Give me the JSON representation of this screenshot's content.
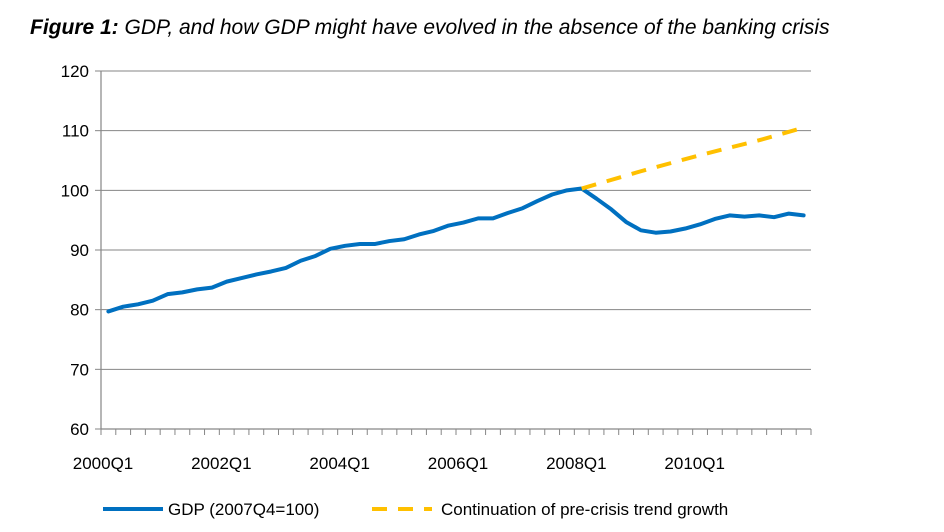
{
  "title": {
    "prefix": "Figure 1:",
    "text": "GDP, and how GDP might have evolved in the absence of the banking crisis"
  },
  "chart_data": {
    "type": "line",
    "x_start": "2000Q1",
    "x_labels": [
      "2000Q1",
      "2002Q1",
      "2004Q1",
      "2006Q1",
      "2008Q1",
      "2010Q1"
    ],
    "y_ticks": [
      60,
      70,
      80,
      90,
      100,
      110,
      120
    ],
    "ylim": [
      60,
      120
    ],
    "grid": true,
    "legend_position": "bottom",
    "series": [
      {
        "name": "GDP (2007Q4=100)",
        "color": "#0070C0",
        "style": "solid",
        "x": [
          "2000Q1",
          "2000Q2",
          "2000Q3",
          "2000Q4",
          "2001Q1",
          "2001Q2",
          "2001Q3",
          "2001Q4",
          "2002Q1",
          "2002Q2",
          "2002Q3",
          "2002Q4",
          "2003Q1",
          "2003Q2",
          "2003Q3",
          "2003Q4",
          "2004Q1",
          "2004Q2",
          "2004Q3",
          "2004Q4",
          "2005Q1",
          "2005Q2",
          "2005Q3",
          "2005Q4",
          "2006Q1",
          "2006Q2",
          "2006Q3",
          "2006Q4",
          "2007Q1",
          "2007Q2",
          "2007Q3",
          "2007Q4",
          "2008Q1",
          "2008Q2",
          "2008Q3",
          "2008Q4",
          "2009Q1",
          "2009Q2",
          "2009Q3",
          "2009Q4",
          "2010Q1",
          "2010Q2",
          "2010Q3",
          "2010Q4",
          "2011Q1",
          "2011Q2",
          "2011Q3",
          "2011Q4"
        ],
        "values": [
          79.7,
          80.5,
          80.9,
          81.5,
          82.6,
          82.9,
          83.4,
          83.7,
          84.7,
          85.3,
          85.9,
          86.4,
          87.0,
          88.2,
          89.0,
          90.2,
          90.7,
          91.0,
          91.0,
          91.5,
          91.8,
          92.6,
          93.2,
          94.1,
          94.6,
          95.3,
          95.3,
          96.2,
          97.0,
          98.2,
          99.3,
          100.0,
          100.3,
          98.6,
          96.8,
          94.7,
          93.3,
          92.9,
          93.1,
          93.6,
          94.3,
          95.2,
          95.8,
          95.6,
          95.8,
          95.5,
          96.1,
          95.8
        ]
      },
      {
        "name": "Continuation of pre-crisis trend growth",
        "color": "#FFC000",
        "style": "dashed",
        "x": [
          "2008Q1",
          "2009Q1",
          "2010Q1",
          "2011Q1",
          "2011Q4"
        ],
        "values": [
          100.3,
          103.2,
          105.9,
          108.4,
          110.5
        ]
      }
    ]
  }
}
